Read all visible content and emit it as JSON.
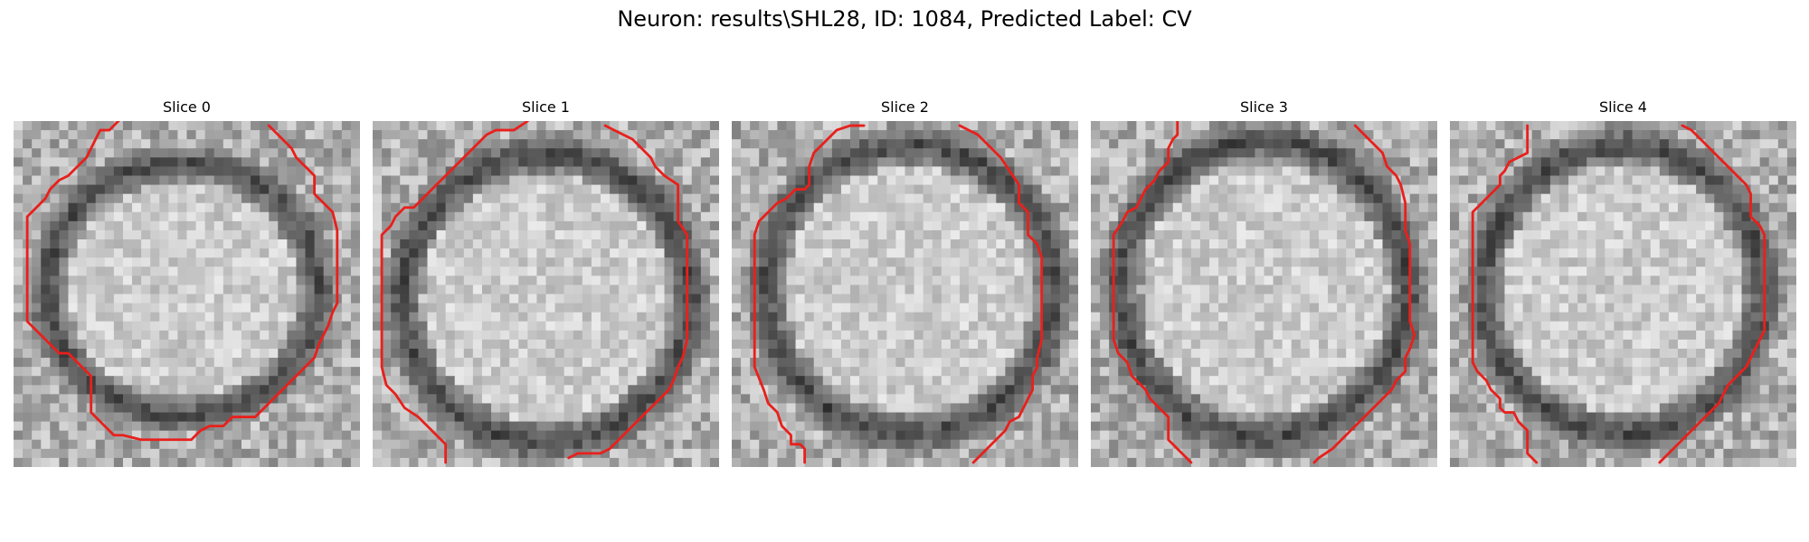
{
  "figure": {
    "title": "Neuron: results\\SHL28, ID: 1084, Predicted Label: CV",
    "contour_color": "#e8201c",
    "colormap": "gray"
  },
  "slices": [
    {
      "label": "Slice 0",
      "contour": [
        [
          [
            11.5,
            0
          ],
          [
            10.5,
            1
          ],
          [
            9.5,
            1
          ],
          [
            9,
            2
          ],
          [
            8.5,
            3
          ],
          [
            8,
            4
          ],
          [
            7,
            5
          ],
          [
            6,
            6
          ],
          [
            5,
            6.5
          ],
          [
            4,
            7.5
          ],
          [
            3.5,
            8.5
          ],
          [
            2.5,
            9.5
          ],
          [
            1.5,
            10.5
          ],
          [
            1.5,
            13
          ],
          [
            1.5,
            16
          ],
          [
            1.5,
            19
          ],
          [
            1.5,
            22
          ],
          [
            2.5,
            23
          ],
          [
            3.5,
            24
          ],
          [
            5,
            25.5
          ],
          [
            6,
            25.5
          ],
          [
            7,
            26.5
          ],
          [
            8.5,
            28
          ],
          [
            8.5,
            30
          ],
          [
            8.5,
            32
          ],
          [
            9.5,
            33
          ],
          [
            11,
            34.5
          ],
          [
            12,
            34.5
          ],
          [
            14,
            35
          ],
          [
            17,
            35
          ],
          [
            19.5,
            35
          ],
          [
            20.5,
            34
          ],
          [
            21.5,
            33.5
          ],
          [
            23,
            33.5
          ],
          [
            24,
            32.5
          ],
          [
            26.5,
            32.5
          ],
          [
            28,
            31
          ],
          [
            30,
            29
          ],
          [
            32,
            27
          ],
          [
            33,
            26
          ],
          [
            33.5,
            24.5
          ],
          [
            34.5,
            22.5
          ],
          [
            35,
            21
          ],
          [
            35.5,
            20
          ],
          [
            35.5,
            18
          ],
          [
            35.5,
            16
          ],
          [
            35.5,
            14
          ],
          [
            35.5,
            12
          ],
          [
            35,
            10
          ],
          [
            34,
            9
          ],
          [
            33,
            8
          ],
          [
            33,
            6
          ],
          [
            32,
            5
          ],
          [
            31,
            4
          ],
          [
            30.5,
            3
          ],
          [
            29.5,
            2
          ],
          [
            28,
            0.5
          ]
        ]
      ]
    },
    {
      "label": "Slice 1",
      "contour": [
        [
          [
            17,
            0
          ],
          [
            15.5,
            1
          ],
          [
            13.5,
            1
          ],
          [
            12.5,
            1.5
          ],
          [
            11,
            3
          ],
          [
            10,
            4
          ],
          [
            9,
            5
          ],
          [
            8,
            6
          ],
          [
            7,
            7
          ],
          [
            6,
            8
          ],
          [
            5,
            9
          ],
          [
            4.5,
            9.5
          ],
          [
            3.5,
            9.5
          ],
          [
            2.5,
            10.5
          ],
          [
            2,
            11.5
          ],
          [
            1,
            12.5
          ],
          [
            1,
            15
          ],
          [
            1,
            18
          ],
          [
            1,
            21
          ],
          [
            1,
            24
          ],
          [
            1,
            27
          ],
          [
            1.5,
            29
          ],
          [
            2.5,
            30
          ],
          [
            3.5,
            31.5
          ],
          [
            5,
            32.5
          ],
          [
            6,
            33.5
          ],
          [
            7,
            34.5
          ],
          [
            8,
            35.5
          ],
          [
            8,
            37.5
          ]
        ],
        [
          [
            25.5,
            0.5
          ],
          [
            26.5,
            1
          ],
          [
            27.5,
            1.5
          ],
          [
            28.5,
            2
          ],
          [
            29.5,
            3
          ],
          [
            30.5,
            4
          ],
          [
            31,
            5
          ],
          [
            32,
            6
          ],
          [
            33.5,
            7
          ],
          [
            33.5,
            9
          ],
          [
            33.5,
            11
          ],
          [
            34.5,
            12.5
          ],
          [
            34.5,
            15
          ],
          [
            34.5,
            18
          ],
          [
            34.5,
            21
          ],
          [
            34.5,
            24
          ],
          [
            34,
            26
          ],
          [
            33.5,
            27
          ],
          [
            33,
            28.5
          ],
          [
            32.5,
            29.5
          ],
          [
            31,
            31
          ],
          [
            30,
            32
          ],
          [
            29,
            33
          ],
          [
            28,
            34
          ],
          [
            27,
            35
          ],
          [
            26,
            36
          ],
          [
            25,
            36.5
          ],
          [
            23.5,
            36.5
          ],
          [
            22.5,
            36.5
          ],
          [
            21.5,
            37
          ]
        ]
      ]
    },
    {
      "label": "Slice 2",
      "contour": [
        [
          [
            14.5,
            0.5
          ],
          [
            13,
            0.5
          ],
          [
            11.5,
            1
          ],
          [
            10,
            2.5
          ],
          [
            9,
            3.5
          ],
          [
            8.5,
            5
          ],
          [
            8.5,
            7
          ],
          [
            8,
            7.5
          ],
          [
            7,
            7.5
          ],
          [
            6,
            8.5
          ],
          [
            5,
            9
          ],
          [
            4,
            10
          ],
          [
            3,
            11
          ],
          [
            2.5,
            12.5
          ],
          [
            2.5,
            15
          ],
          [
            2.5,
            18
          ],
          [
            2.5,
            21
          ],
          [
            2.5,
            24
          ],
          [
            2.5,
            27
          ],
          [
            3.5,
            29.5
          ],
          [
            4,
            31
          ],
          [
            5,
            32
          ],
          [
            5.5,
            33.5
          ],
          [
            6.5,
            34.5
          ],
          [
            6.5,
            35.5
          ],
          [
            7.5,
            35.5
          ],
          [
            8,
            36
          ],
          [
            8,
            37.5
          ]
        ],
        [
          [
            25,
            0.5
          ],
          [
            26,
            1
          ],
          [
            27,
            1.5
          ],
          [
            28,
            2.5
          ],
          [
            29.5,
            4
          ],
          [
            30.5,
            5.5
          ],
          [
            31.5,
            7
          ],
          [
            31.5,
            9
          ],
          [
            32.5,
            10
          ],
          [
            32.5,
            12.5
          ],
          [
            33.5,
            13.5
          ],
          [
            34,
            15
          ],
          [
            34,
            18
          ],
          [
            34,
            21
          ],
          [
            34,
            24
          ],
          [
            33.5,
            26
          ],
          [
            33.5,
            27
          ],
          [
            33,
            28
          ],
          [
            33,
            29.5
          ],
          [
            32.5,
            30.5
          ],
          [
            32,
            31.5
          ],
          [
            31.5,
            32.5
          ],
          [
            30.5,
            33
          ],
          [
            30,
            34
          ],
          [
            29,
            35
          ],
          [
            28.5,
            35.5
          ],
          [
            27.5,
            36.5
          ],
          [
            26.5,
            37.5
          ]
        ]
      ]
    },
    {
      "label": "Slice 3",
      "contour": [
        [
          [
            9.5,
            0
          ],
          [
            9.5,
            1.5
          ],
          [
            9,
            2
          ],
          [
            8.5,
            3
          ],
          [
            8.5,
            4.5
          ],
          [
            7.5,
            5.5
          ],
          [
            7,
            6.5
          ],
          [
            6,
            7.5
          ],
          [
            5.5,
            8.5
          ],
          [
            5,
            9.5
          ],
          [
            4,
            10
          ],
          [
            3.5,
            11
          ],
          [
            2.5,
            12.5
          ],
          [
            2.5,
            15
          ],
          [
            2.5,
            18
          ],
          [
            2.5,
            21
          ],
          [
            2.5,
            24
          ],
          [
            3,
            25.5
          ],
          [
            4,
            26.5
          ],
          [
            4.5,
            28
          ],
          [
            5.5,
            29
          ],
          [
            6,
            29.5
          ],
          [
            6.5,
            30.5
          ],
          [
            7.5,
            31.5
          ],
          [
            8.5,
            32.5
          ],
          [
            8.5,
            33.5
          ],
          [
            8.5,
            35
          ],
          [
            9.5,
            36
          ],
          [
            10.5,
            37
          ],
          [
            11,
            37.5
          ]
        ],
        [
          [
            29,
            0.5
          ],
          [
            30,
            1.5
          ],
          [
            31,
            2.5
          ],
          [
            32,
            3.5
          ],
          [
            32.5,
            5
          ],
          [
            33.5,
            6
          ],
          [
            34,
            7
          ],
          [
            34.5,
            9
          ],
          [
            34.5,
            12
          ],
          [
            35,
            13.5
          ],
          [
            35,
            16
          ],
          [
            35,
            19
          ],
          [
            35,
            22
          ],
          [
            35.5,
            23.5
          ],
          [
            35,
            25
          ],
          [
            34.5,
            26
          ],
          [
            34.5,
            27.5
          ],
          [
            33.5,
            28.5
          ],
          [
            33,
            29.5
          ],
          [
            32.5,
            30
          ],
          [
            31.5,
            31
          ],
          [
            30.5,
            32
          ],
          [
            29.5,
            33
          ],
          [
            28.5,
            34
          ],
          [
            27.5,
            35
          ],
          [
            26.5,
            36
          ],
          [
            25,
            37
          ],
          [
            24.5,
            37.5
          ]
        ]
      ]
    },
    {
      "label": "Slice 4",
      "contour": [
        [
          [
            8.5,
            0.5
          ],
          [
            8.5,
            2.5
          ],
          [
            8.5,
            3.5
          ],
          [
            7.5,
            4
          ],
          [
            6.5,
            4.5
          ],
          [
            6,
            5.5
          ],
          [
            5.5,
            6
          ],
          [
            5.5,
            7
          ],
          [
            4.5,
            8
          ],
          [
            4,
            8.5
          ],
          [
            3.5,
            9
          ],
          [
            2.5,
            10
          ],
          [
            2.5,
            12
          ],
          [
            2.5,
            15
          ],
          [
            2.5,
            18
          ],
          [
            2.5,
            21
          ],
          [
            2.5,
            24
          ],
          [
            2.5,
            26.5
          ],
          [
            3,
            27.5
          ],
          [
            4,
            28.5
          ],
          [
            4.5,
            29.5
          ],
          [
            5.5,
            30.5
          ],
          [
            5.5,
            31.5
          ],
          [
            6,
            32
          ],
          [
            7,
            32
          ],
          [
            7.5,
            33
          ],
          [
            8.5,
            34
          ],
          [
            8.5,
            35.5
          ],
          [
            8.5,
            36.5
          ],
          [
            9.5,
            37.5
          ]
        ],
        [
          [
            25.5,
            0.5
          ],
          [
            26.5,
            1
          ],
          [
            27.5,
            2
          ],
          [
            28.5,
            3
          ],
          [
            29.5,
            4
          ],
          [
            30.5,
            5
          ],
          [
            31.5,
            6
          ],
          [
            32.5,
            7
          ],
          [
            33,
            8
          ],
          [
            33,
            9.5
          ],
          [
            33,
            10.5
          ],
          [
            34,
            11.5
          ],
          [
            34.5,
            12.5
          ],
          [
            34.5,
            15
          ],
          [
            34.5,
            18
          ],
          [
            34.5,
            21
          ],
          [
            34.5,
            23
          ],
          [
            34,
            24
          ],
          [
            33.5,
            25
          ],
          [
            33,
            26
          ],
          [
            32.5,
            27
          ],
          [
            31.5,
            28
          ],
          [
            30.5,
            29
          ],
          [
            30,
            30
          ],
          [
            29.5,
            31
          ],
          [
            28.5,
            32
          ],
          [
            27.5,
            33
          ],
          [
            26.5,
            34
          ],
          [
            25.5,
            35
          ],
          [
            24.5,
            36
          ],
          [
            23.5,
            37
          ],
          [
            23,
            37.5
          ]
        ]
      ]
    }
  ]
}
